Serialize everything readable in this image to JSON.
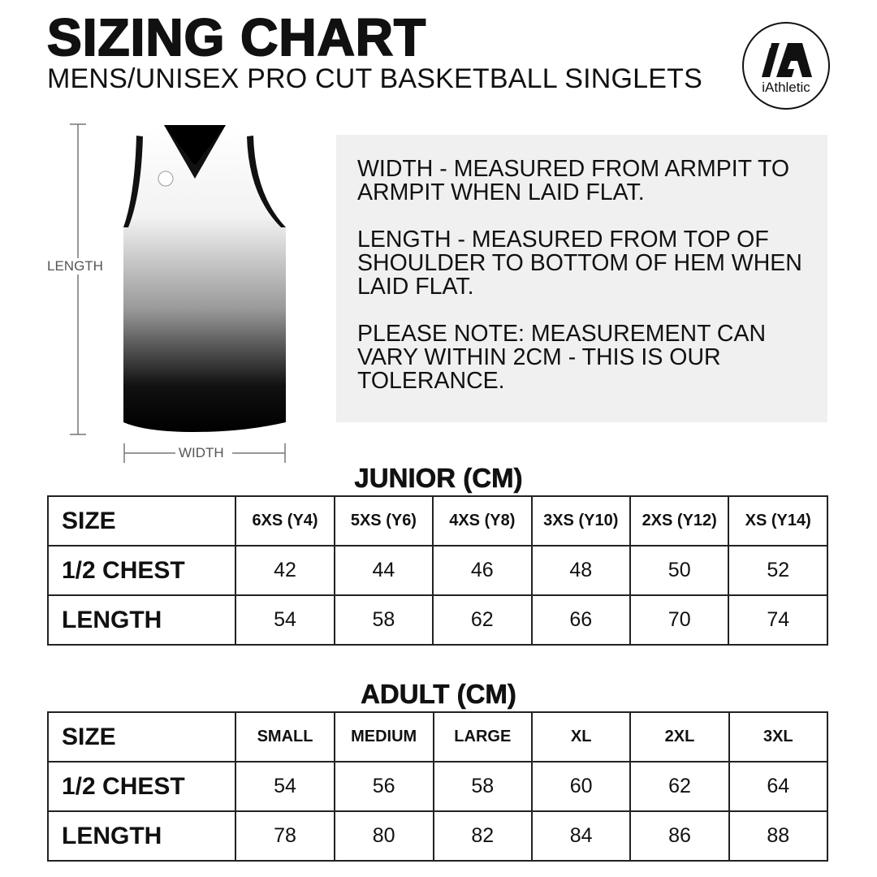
{
  "header": {
    "title": "SIZING CHART",
    "subtitle": "MENS/UNISEX PRO CUT BASKETBALL SINGLETS",
    "logo_text": "iAthletic"
  },
  "diagram": {
    "length_label": "LENGTH",
    "width_label": "WIDTH"
  },
  "info": {
    "width_note": "WIDTH - MEASURED FROM ARMPIT TO ARMPIT WHEN LAID FLAT.",
    "length_note": "LENGTH - MEASURED FROM TOP OF SHOULDER TO BOTTOM OF HEM WHEN LAID FLAT.",
    "tolerance_note": "PLEASE NOTE: MEASUREMENT CAN VARY WITHIN 2CM - THIS IS OUR TOLERANCE."
  },
  "junior": {
    "title": "JUNIOR (CM)",
    "row_labels": [
      "SIZE",
      "1/2 CHEST",
      "LENGTH"
    ],
    "sizes": [
      "6XS (Y4)",
      "5XS (Y6)",
      "4XS (Y8)",
      "3XS (Y10)",
      "2XS (Y12)",
      "XS (Y14)"
    ],
    "chest": [
      "42",
      "44",
      "46",
      "48",
      "50",
      "52"
    ],
    "length": [
      "54",
      "58",
      "62",
      "66",
      "70",
      "74"
    ]
  },
  "adult": {
    "title": "ADULT (CM)",
    "row_labels": [
      "SIZE",
      "1/2 CHEST",
      "LENGTH"
    ],
    "sizes": [
      "SMALL",
      "MEDIUM",
      "LARGE",
      "XL",
      "2XL",
      "3XL"
    ],
    "chest": [
      "54",
      "56",
      "58",
      "60",
      "62",
      "64"
    ],
    "length": [
      "78",
      "80",
      "82",
      "84",
      "86",
      "88"
    ]
  }
}
